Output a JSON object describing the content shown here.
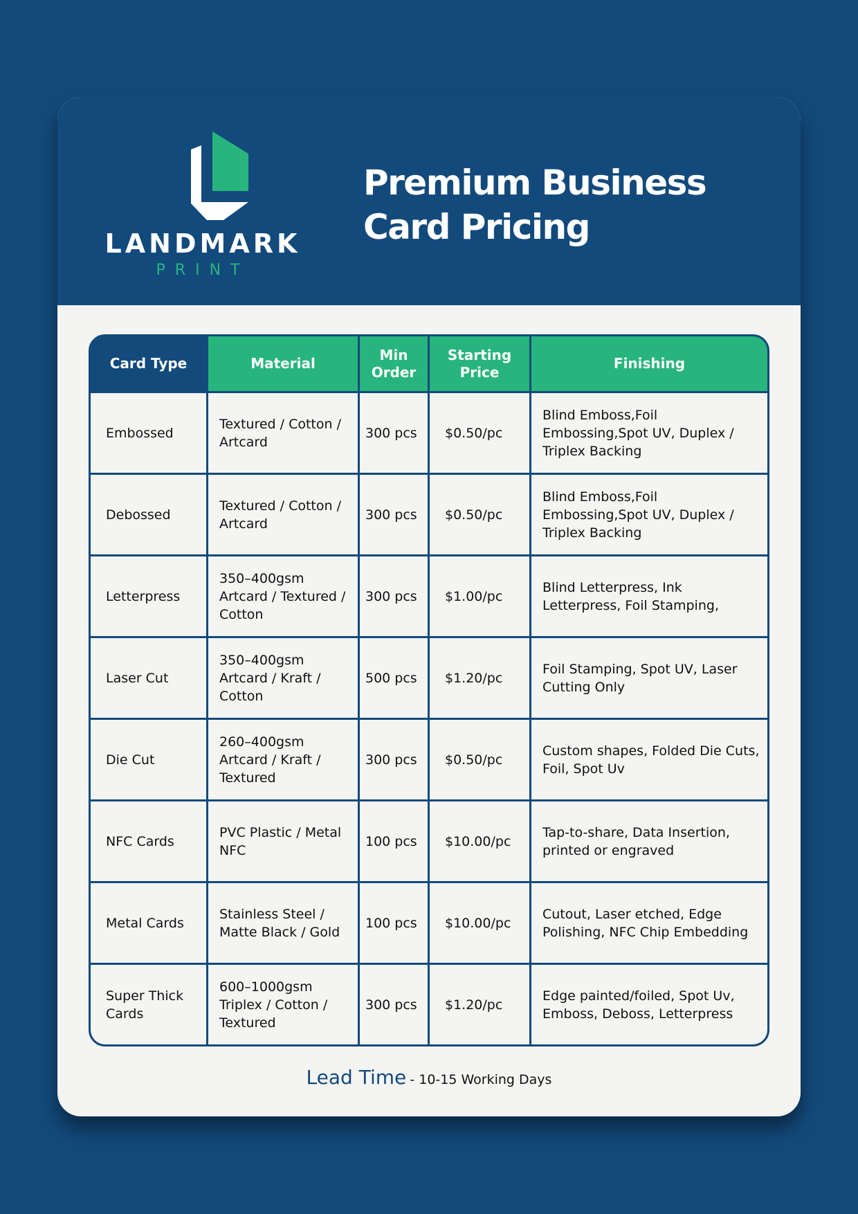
{
  "brand": {
    "name": "LANDMARK",
    "sub": "PRINT",
    "colors": {
      "primary": "#134a7c",
      "accent": "#27b57d"
    }
  },
  "title": {
    "line1": "Premium Business",
    "line2": "Card Pricing"
  },
  "table": {
    "headers": [
      "Card Type",
      "Material",
      "Min Order",
      "Starting Price",
      "Finishing"
    ],
    "rows": [
      [
        "Embossed",
        "Textured / Cotton / Artcard",
        "300 pcs",
        "$0.50/pc",
        "Blind Emboss,Foil Embossing,Spot UV, Duplex / Triplex Backing"
      ],
      [
        "Debossed",
        "Textured / Cotton / Artcard",
        "300 pcs",
        "$0.50/pc",
        "Blind Emboss,Foil Embossing,Spot UV, Duplex / Triplex Backing"
      ],
      [
        "Letterpress",
        "350–400gsm Artcard / Textured / Cotton",
        "300 pcs",
        "$1.00/pc",
        "Blind Letterpress, Ink Letterpress, Foil Stamping,"
      ],
      [
        "Laser Cut",
        "350–400gsm Artcard / Kraft / Cotton",
        "500 pcs",
        "$1.20/pc",
        "Foil Stamping, Spot UV, Laser Cutting Only"
      ],
      [
        "Die Cut",
        "260–400gsm Artcard / Kraft / Textured",
        "300 pcs",
        "$0.50/pc",
        "Custom shapes, Folded Die Cuts, Foil, Spot Uv"
      ],
      [
        "NFC Cards",
        "PVC Plastic / Metal NFC",
        "100 pcs",
        "$10.00/pc",
        "Tap-to-share, Data Insertion, printed or engraved"
      ],
      [
        "Metal Cards",
        "Stainless Steel / Matte Black / Gold",
        "100 pcs",
        "$10.00/pc",
        "Cutout, Laser etched, Edge Polishing, NFC Chip Embedding"
      ],
      [
        "Super Thick Cards",
        "600–1000gsm Triplex / Cotton / Textured",
        "300 pcs",
        "$1.20/pc",
        "Edge painted/foiled, Spot Uv, Emboss, Deboss, Letterpress"
      ]
    ]
  },
  "lead_time": {
    "label": "Lead Time",
    "value": "- 10-15 Working Days"
  }
}
